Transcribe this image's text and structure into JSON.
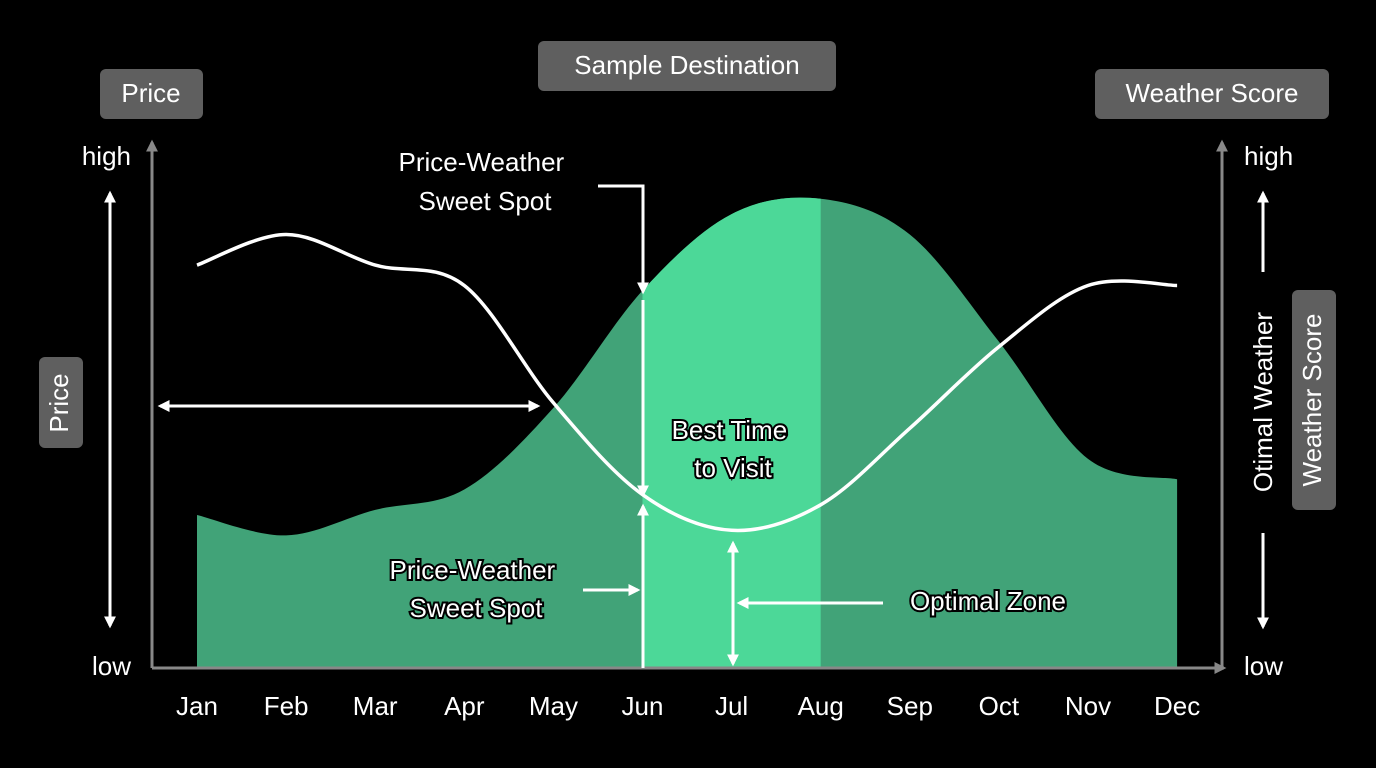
{
  "chart_data": {
    "type": "line",
    "title": "Sample Destination",
    "categories": [
      "Jan",
      "Feb",
      "Mar",
      "Apr",
      "May",
      "Jun",
      "Jul",
      "Aug",
      "Sep",
      "Oct",
      "Nov",
      "Dec"
    ],
    "series": [
      {
        "name": "Price",
        "type": "line",
        "color": "#ffffff",
        "values": [
          79,
          85,
          79,
          75,
          52,
          34,
          27,
          32,
          47,
          63,
          75,
          75
        ]
      },
      {
        "name": "Weather Score",
        "type": "area",
        "axis": "y2",
        "color": "#41a378",
        "values": [
          30,
          26,
          31,
          35,
          51,
          74,
          89,
          92,
          85,
          64,
          41,
          37
        ]
      }
    ],
    "optimal_zone": {
      "start": "Jun",
      "end": "Aug",
      "color": "#4cd898"
    },
    "ylim": [
      0,
      100
    ],
    "yticks": [
      {
        "value": 0,
        "label": "low"
      },
      {
        "value": 100,
        "label": "high"
      }
    ],
    "y2lim": [
      0,
      100
    ],
    "y2ticks": [
      {
        "value": 0,
        "label": "low"
      },
      {
        "value": 100,
        "label": "high"
      }
    ],
    "y_label": "Price",
    "y2_labels": [
      "Otimal Weather",
      "Weather Score"
    ],
    "annotations": [
      {
        "lines": [
          "Price-Weather",
          "Sweet Spot"
        ]
      },
      {
        "lines": [
          "Best Time",
          "to Visit"
        ]
      },
      {
        "lines": [
          "Price-Weather",
          "Sweet Spot"
        ]
      },
      {
        "lines": [
          "Optimal Zone"
        ]
      }
    ]
  }
}
